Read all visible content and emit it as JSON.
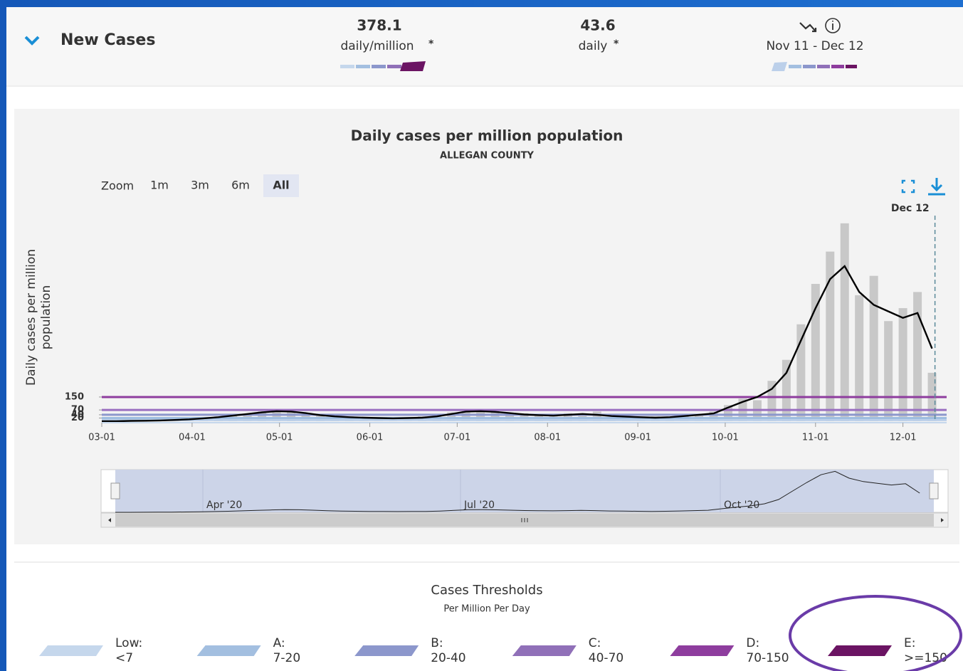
{
  "header": {
    "title": "New Cases",
    "stats": [
      {
        "value": 378.1,
        "label": "daily/million",
        "note": "*"
      },
      {
        "value": 43.6,
        "label": "daily",
        "note": "*"
      },
      {
        "label": "Nov 11 - Dec 12"
      }
    ]
  },
  "chart_data": {
    "type": "bar",
    "title": "Daily cases per million population",
    "subtitle": "ALLEGAN COUNTY",
    "y_label_lines": [
      "Daily cases per million",
      "population"
    ],
    "x": [
      "03-01",
      "03-06",
      "03-11",
      "03-16",
      "03-21",
      "03-26",
      "03-31",
      "04-05",
      "04-10",
      "04-15",
      "04-20",
      "04-25",
      "04-30",
      "05-05",
      "05-10",
      "05-15",
      "05-20",
      "05-25",
      "05-30",
      "06-04",
      "06-09",
      "06-14",
      "06-19",
      "06-24",
      "06-29",
      "07-04",
      "07-09",
      "07-14",
      "07-19",
      "07-24",
      "07-29",
      "08-03",
      "08-08",
      "08-13",
      "08-18",
      "08-23",
      "08-28",
      "09-02",
      "09-07",
      "09-12",
      "09-17",
      "09-22",
      "09-27",
      "10-02",
      "10-07",
      "10-12",
      "10-17",
      "10-22",
      "10-27",
      "11-01",
      "11-06",
      "11-11",
      "11-16",
      "11-21",
      "11-26",
      "12-01",
      "12-06",
      "12-11"
    ],
    "series": [
      {
        "type": "bar",
        "color": "#c8c8c8",
        "values": [
          0,
          0,
          5,
          0,
          8,
          10,
          15,
          20,
          30,
          45,
          40,
          60,
          70,
          55,
          45,
          40,
          25,
          30,
          20,
          15,
          25,
          18,
          30,
          35,
          55,
          70,
          55,
          65,
          40,
          50,
          35,
          30,
          50,
          40,
          60,
          25,
          35,
          20,
          30,
          25,
          40,
          35,
          60,
          100,
          140,
          130,
          250,
          380,
          600,
          850,
          1050,
          1225,
          780,
          900,
          620,
          700,
          800,
          300
        ]
      },
      {
        "type": "line",
        "color": "#000000",
        "values": [
          0,
          0,
          2,
          3,
          5,
          8,
          12,
          18,
          25,
          35,
          45,
          55,
          62,
          60,
          50,
          38,
          30,
          25,
          22,
          20,
          18,
          20,
          22,
          30,
          45,
          60,
          62,
          58,
          50,
          42,
          38,
          35,
          40,
          45,
          40,
          32,
          28,
          25,
          22,
          25,
          32,
          40,
          48,
          85,
          120,
          150,
          200,
          300,
          500,
          700,
          880,
          960,
          800,
          720,
          680,
          640,
          670,
          450
        ]
      }
    ],
    "xlim": [
      "03-01",
      "12-16"
    ],
    "xticks": [
      "03-01",
      "04-01",
      "05-01",
      "06-01",
      "07-01",
      "08-01",
      "09-01",
      "10-01",
      "11-01",
      "12-01"
    ],
    "ylim": [
      0,
      1330
    ],
    "yticks": [
      20,
      40,
      70,
      150
    ],
    "thresholds": [
      {
        "value": 7,
        "color": "#bcd0ea"
      },
      {
        "value": 20,
        "color": "#9fbde0"
      },
      {
        "value": 40,
        "color": "#8c97cc"
      },
      {
        "value": 70,
        "color": "#9a6fc0"
      },
      {
        "value": 150,
        "color": "#8e3d9e"
      }
    ],
    "marker_label": "Dec 12"
  },
  "zoom": {
    "label": "Zoom",
    "buttons": [
      "1m",
      "3m",
      "6m",
      "All"
    ],
    "active": 3
  },
  "navigator": {
    "labels": [
      "Apr '20",
      "Jul '20",
      "Oct '20"
    ]
  },
  "legend": {
    "title": "Cases Thresholds",
    "subtitle": "Per Million Per Day",
    "items": [
      {
        "name": "Low:",
        "range": "<7",
        "color": "#c5d7ec"
      },
      {
        "name": "A:",
        "range": "7-20",
        "color": "#a3bfe0"
      },
      {
        "name": "B:",
        "range": "20-40",
        "color": "#8c97cc"
      },
      {
        "name": "C:",
        "range": "40-70",
        "color": "#9070b8"
      },
      {
        "name": "D:",
        "range": "70-150",
        "color": "#8e3d9e"
      },
      {
        "name": "E:",
        "range": ">=150",
        "color": "#6b1463"
      }
    ]
  }
}
